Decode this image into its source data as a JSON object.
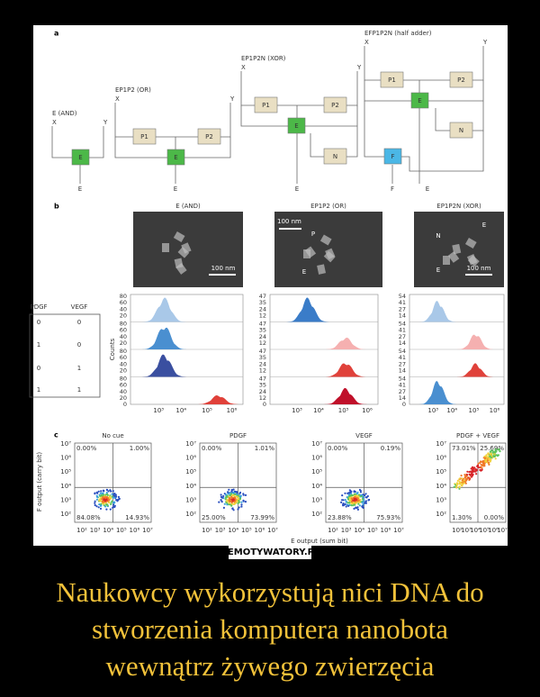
{
  "figure": {
    "panel_labels": [
      "a",
      "b",
      "c"
    ],
    "circuits": [
      {
        "title": "E (AND)",
        "inputs": [
          "X",
          "Y"
        ],
        "nodes": [
          "E"
        ],
        "outputs": [
          "E"
        ]
      },
      {
        "title": "EP1P2 (OR)",
        "inputs": [
          "X",
          "Y"
        ],
        "nodes": [
          "P1",
          "P2",
          "E"
        ],
        "outputs": [
          "E"
        ]
      },
      {
        "title": "EP1P2N (XOR)",
        "inputs": [
          "X",
          "Y"
        ],
        "nodes": [
          "P1",
          "P2",
          "E",
          "N"
        ],
        "outputs": [
          "E"
        ]
      },
      {
        "title": "EFP1P2N (half adder)",
        "inputs": [
          "X",
          "Y"
        ],
        "nodes": [
          "P1",
          "P2",
          "E",
          "N",
          "F"
        ],
        "outputs": [
          "F",
          "E"
        ]
      }
    ],
    "truth_table": {
      "headers": [
        "PDGF",
        "VEGF"
      ],
      "rows": [
        [
          "0",
          "0"
        ],
        [
          "1",
          "0"
        ],
        [
          "0",
          "1"
        ],
        [
          "1",
          "1"
        ]
      ]
    },
    "micrographs": [
      {
        "title": "E (AND)",
        "labels": [
          "100 nm"
        ]
      },
      {
        "title": "EP1P2 (OR)",
        "labels": [
          "100 nm",
          "P",
          "E"
        ]
      },
      {
        "title": "EP1P2N (XOR)",
        "labels": [
          "N",
          "E",
          "E",
          "100 nm"
        ]
      }
    ],
    "histograms": {
      "y_label": "Counts",
      "xticks": [
        "10³",
        "10⁴",
        "10⁵",
        "10⁶"
      ],
      "columns": [
        {
          "yticks": [
            "80",
            "60",
            "40",
            "20",
            "0"
          ]
        },
        {
          "yticks": [
            "47",
            "35",
            "24",
            "12",
            "0"
          ]
        },
        {
          "yticks": [
            "54",
            "41",
            "27",
            "14",
            "0"
          ]
        }
      ]
    },
    "flow": {
      "y_label": "F output (carry bit)",
      "x_label": "E output (sum bit)",
      "yticks": [
        "10⁷",
        "10⁶",
        "10⁵",
        "10⁴",
        "10³",
        "10²"
      ],
      "xticks": [
        "10²",
        "10³",
        "10⁴",
        "10⁵",
        "10⁶",
        "10⁷"
      ],
      "plots": [
        {
          "title": "No cue",
          "quadrants": [
            "0.00%",
            "1.00%",
            "84.08%",
            "14.93%"
          ]
        },
        {
          "title": "PDGF",
          "quadrants": [
            "0.00%",
            "1.01%",
            "25.00%",
            "73.99%"
          ]
        },
        {
          "title": "VEGF",
          "quadrants": [
            "0.00%",
            "0.19%",
            "23.88%",
            "75.93%"
          ]
        },
        {
          "title": "PDGF + VEGF",
          "quadrants": [
            "73.01%",
            "25.69%",
            "1.30%",
            "0.00%"
          ]
        }
      ]
    }
  },
  "footer": {
    "watermark": "DEMOTYWATORY.PL"
  },
  "caption": [
    "Naukowcy wykorzystują nici DNA do",
    "stworzenia komputera nanobota",
    "wewnątrz żywego zwierzęcia"
  ]
}
